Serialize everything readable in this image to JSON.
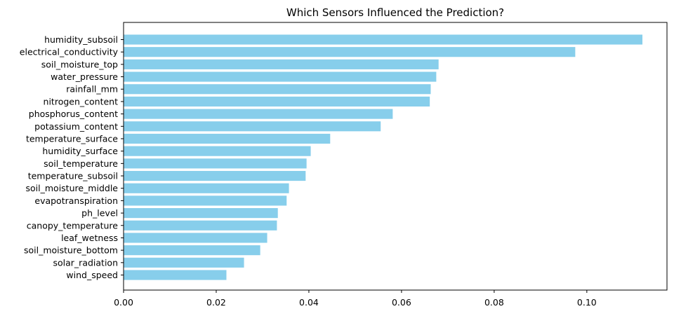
{
  "chart_data": {
    "type": "bar",
    "orientation": "horizontal",
    "title": "Which Sensors Influenced the Prediction?",
    "xlabel": "",
    "ylabel": "",
    "xlim": [
      0,
      0.1173
    ],
    "grid": false,
    "bar_color": "#87ceeb",
    "x_ticks": [
      0.0,
      0.02,
      0.04,
      0.06,
      0.08,
      0.1
    ],
    "x_tick_labels": [
      "0.00",
      "0.02",
      "0.04",
      "0.06",
      "0.08",
      "0.10"
    ],
    "categories": [
      "humidity_subsoil",
      "electrical_conductivity",
      "soil_moisture_top",
      "water_pressure",
      "rainfall_mm",
      "nitrogen_content",
      "phosphorus_content",
      "potassium_content",
      "temperature_surface",
      "humidity_surface",
      "soil_temperature",
      "temperature_subsoil",
      "soil_moisture_middle",
      "evapotranspiration",
      "ph_level",
      "canopy_temperature",
      "leaf_wetness",
      "soil_moisture_bottom",
      "solar_radiation",
      "wind_speed"
    ],
    "values": [
      0.112,
      0.0975,
      0.068,
      0.0675,
      0.0663,
      0.0661,
      0.0581,
      0.0555,
      0.0446,
      0.0404,
      0.0395,
      0.0393,
      0.0357,
      0.0352,
      0.0333,
      0.0331,
      0.031,
      0.0295,
      0.026,
      0.0222
    ]
  }
}
